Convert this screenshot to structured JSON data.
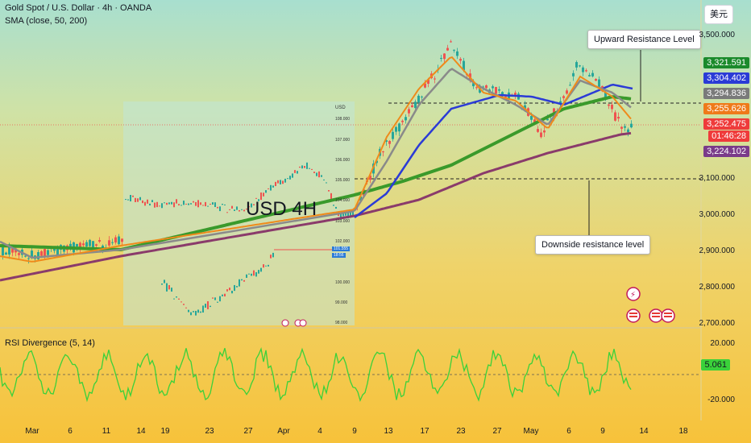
{
  "header": {
    "title": "Gold Spot / U.S. Dollar · 4h · OANDA",
    "indicator": "SMA (close, 50, 200)",
    "currency_button": "美元"
  },
  "annotations": {
    "upward": "Upward Resistance Level",
    "downside": "Downside resistance level",
    "overlay_title": "USD 4H"
  },
  "price_axis": {
    "labels": [
      "3,500.000",
      "3,100.000",
      "3,000.000",
      "2,900.000",
      "2,800.000",
      "2,700.000"
    ]
  },
  "price_tags": [
    {
      "label": "3,321.591",
      "color": "#1b8a2b"
    },
    {
      "label": "3,304.402",
      "color": "#2b3bd6"
    },
    {
      "label": "3,294.836",
      "color": "#7a7a7a"
    },
    {
      "label": "3,255.626",
      "color": "#ef7a1a"
    },
    {
      "label": "3,252.475",
      "color": "#ef3b3b"
    },
    {
      "label": "01:46:28",
      "color": "#ef3b3b"
    },
    {
      "label": "3,224.102",
      "color": "#7a3b8a"
    }
  ],
  "inset": {
    "usd_label": "USD",
    "y_labels": [
      "108.000",
      "107.000",
      "106.000",
      "105.000",
      "104.000",
      "103.000",
      "102.000",
      "100.000",
      "99.000",
      "98.000"
    ],
    "tag_price": "101.555",
    "tag_time": "18:56"
  },
  "rsi": {
    "title": "RSI Divergence (5, 14)",
    "labels": [
      "20.000",
      "-20.000"
    ],
    "value": "5.061"
  },
  "time_axis": [
    "Mar",
    "6",
    "11",
    "14",
    "19",
    "23",
    "27",
    "Apr",
    "4",
    "9",
    "13",
    "17",
    "23",
    "27",
    "May",
    "6",
    "9",
    "14",
    "18"
  ],
  "colors": {
    "sma_orange": "#ef8a1a",
    "sma_gray": "#8a8a8a",
    "sma_blue": "#2b3bd6",
    "sma_green": "#3a9a2b",
    "sma_purple": "#8a3b6b",
    "up": "#26a69a",
    "down": "#ef5350"
  }
}
